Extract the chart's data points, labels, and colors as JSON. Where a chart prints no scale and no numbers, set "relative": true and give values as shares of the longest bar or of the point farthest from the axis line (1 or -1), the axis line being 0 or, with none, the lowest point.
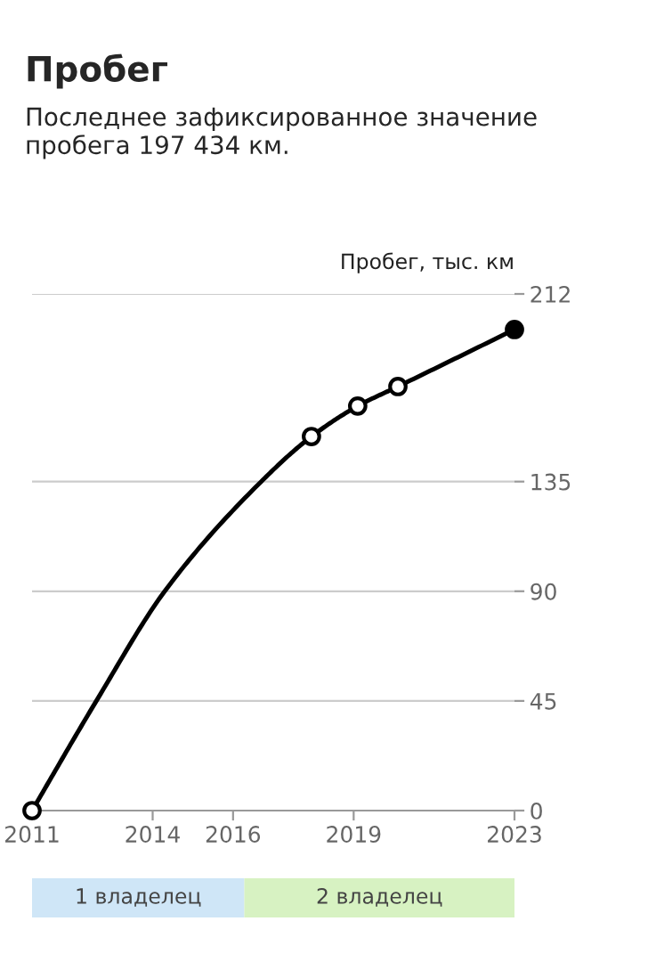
{
  "chart_data": [
    {
      "type": "line",
      "title": "Пробег",
      "subtitle": "Последнее зафиксированное значение пробега 197 434 км.",
      "ylabel": "Пробег, тыс. км",
      "series": [
        {
          "color": "#000000",
          "marker": "none",
          "x": [
            2011,
            2012.6,
            2014.3,
            2016.7,
            2017.95,
            2019.1,
            2020.1,
            2023
          ],
          "values": [
            0,
            45,
            90,
            135,
            153.5,
            166,
            174,
            197.4
          ]
        },
        {
          "type": "scatter",
          "color": "#000000",
          "marker": "circle",
          "colors": [
            "#ffffff",
            "#ffffff",
            "#ffffff",
            "#ffffff",
            "#000000"
          ],
          "x": [
            2011,
            2017.95,
            2019.1,
            2020.1,
            2023
          ],
          "values": [
            0,
            153.5,
            166,
            174,
            197.4
          ]
        }
      ],
      "xlim": [
        2011,
        2023
      ],
      "xticks": [
        2011,
        2014,
        2016,
        2019,
        2023
      ],
      "ylim": [
        0,
        212
      ],
      "yticks": [
        0,
        45,
        90,
        135,
        212
      ],
      "grid": "y"
    },
    {
      "type": "bar",
      "orientation": "horizontal",
      "stacked": true,
      "relative": true,
      "categories": [
        null
      ],
      "series": [
        {
          "name": "1 владелец",
          "color": "#cfe6f7",
          "values": [
            0.44
          ]
        },
        {
          "name": "2 владелец",
          "color": "#d7f2c2",
          "values": [
            0.56
          ]
        }
      ]
    }
  ]
}
